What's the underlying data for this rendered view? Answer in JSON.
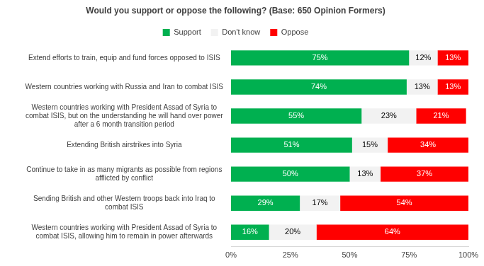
{
  "chart_data": {
    "type": "bar",
    "title": "Would you support or oppose the following? (Base: 650 Opinion Formers)",
    "orientation": "horizontal",
    "stacked": true,
    "data_labels": true,
    "legend": "top",
    "grid": false,
    "categories": [
      "Extend efforts to train, equip and fund forces opposed to ISIS",
      "Western countries working with Russia and Iran to combat ISIS",
      "Western countries working with President Assad of Syria to combat ISIS, but on the understanding he will hand over power after a 6 month transition period",
      "Extending British airstrikes into Syria",
      "Continue to take in as many migrants as possible from regions afflicted by conflict",
      "Sending British and other Western troops back into Iraq to combat ISIS",
      "Western countries working with President Assad of Syria to combat ISIS, allowing him to remain in power afterwards"
    ],
    "series": [
      {
        "name": "Support",
        "color": "#00b050",
        "values": [
          75,
          74,
          55,
          51,
          50,
          29,
          16
        ],
        "value_labels": [
          "75%",
          "74%",
          "55%",
          "51%",
          "50%",
          "29%",
          "16%"
        ]
      },
      {
        "name": "Don't know",
        "color": "#f2f2f2",
        "values": [
          12,
          13,
          23,
          15,
          13,
          17,
          20
        ],
        "value_labels": [
          "12%",
          "13%",
          "23%",
          "15%",
          "13%",
          "17%",
          "20%"
        ]
      },
      {
        "name": "Oppose",
        "color": "#ff0000",
        "values": [
          13,
          13,
          21,
          34,
          37,
          54,
          64
        ],
        "value_labels": [
          "13%",
          "13%",
          "21%",
          "34%",
          "37%",
          "54%",
          "64%"
        ]
      }
    ],
    "xlim": [
      0,
      100
    ],
    "xticks": [
      {
        "value": 0,
        "label": "0%"
      },
      {
        "value": 25,
        "label": "25%"
      },
      {
        "value": 50,
        "label": "50%"
      },
      {
        "value": 75,
        "label": "75%"
      },
      {
        "value": 100,
        "label": "100%"
      }
    ]
  }
}
